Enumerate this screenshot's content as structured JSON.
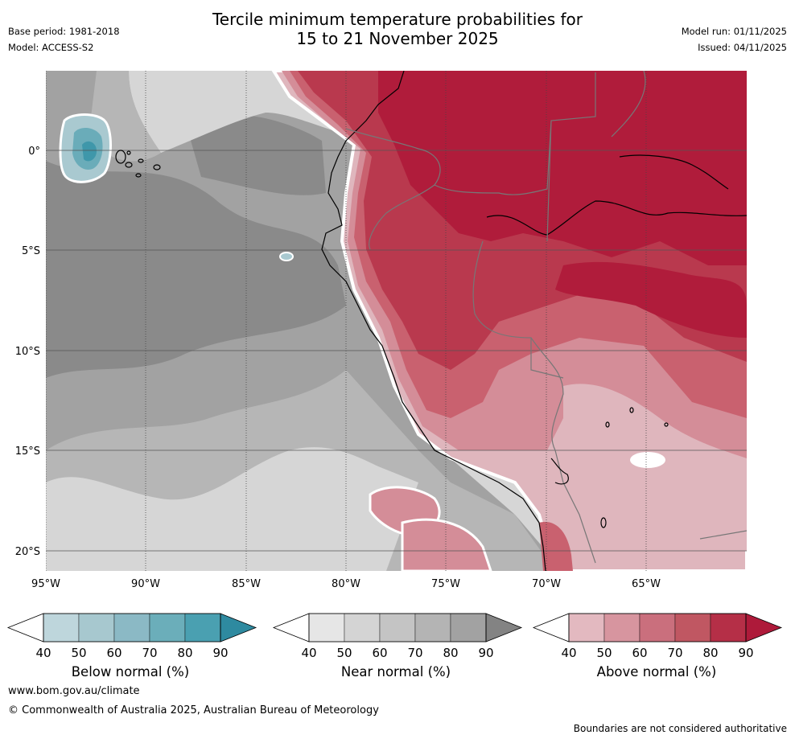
{
  "header": {
    "title_line1": "Tercile minimum temperature probabilities for",
    "title_line2": "15 to 21 November 2025",
    "base_period": "Base period: 1981-2018",
    "model": "Model: ACCESS-S2",
    "model_run": "Model run: 01/11/2025",
    "issued": "Issued: 04/11/2025"
  },
  "map": {
    "lat_labels": [
      "0°",
      "5°S",
      "10°S",
      "15°S",
      "20°S"
    ],
    "lon_labels": [
      "95°W",
      "90°W",
      "85°W",
      "80°W",
      "75°W",
      "70°W",
      "65°W"
    ],
    "colors": {
      "grey_light": "#d6d6d6",
      "grey_mid": "#b6b6b6",
      "grey_dark": "#a2a2a2",
      "grey_darker": "#8a8a8a",
      "red_light": "#dfb6bd",
      "red_mid": "#d48d98",
      "red_strong": "#c9616f",
      "red_deep": "#b9394e",
      "red_deepest": "#b01c3b",
      "teal_light": "#a9c9d0",
      "teal_mid": "#6aacb9",
      "teal_dark": "#3f97aa"
    }
  },
  "colorbars": [
    {
      "title": "Below normal (%)",
      "ticks": [
        "40",
        "50",
        "60",
        "70",
        "80",
        "90"
      ],
      "colors": [
        "#bed6dc",
        "#a7c8cf",
        "#8bb9c5",
        "#6baeba",
        "#4aa0b1",
        "#2e8aa0"
      ]
    },
    {
      "title": "Near normal (%)",
      "ticks": [
        "40",
        "50",
        "60",
        "70",
        "80",
        "90"
      ],
      "colors": [
        "#e6e6e6",
        "#d4d4d4",
        "#c4c4c4",
        "#b4b4b4",
        "#a2a2a2",
        "#838383"
      ]
    },
    {
      "title": "Above normal (%)",
      "ticks": [
        "40",
        "50",
        "60",
        "70",
        "80",
        "90"
      ],
      "colors": [
        "#e3b9c0",
        "#d7959f",
        "#ca6f7d",
        "#c05762",
        "#b52f47",
        "#ae1a3a"
      ]
    }
  ],
  "footer": {
    "website": "www.bom.gov.au/climate",
    "copyright": "© Commonwealth of Australia 2025, Australian Bureau of Meteorology",
    "disclaimer": "Boundaries are not considered authoritative"
  }
}
